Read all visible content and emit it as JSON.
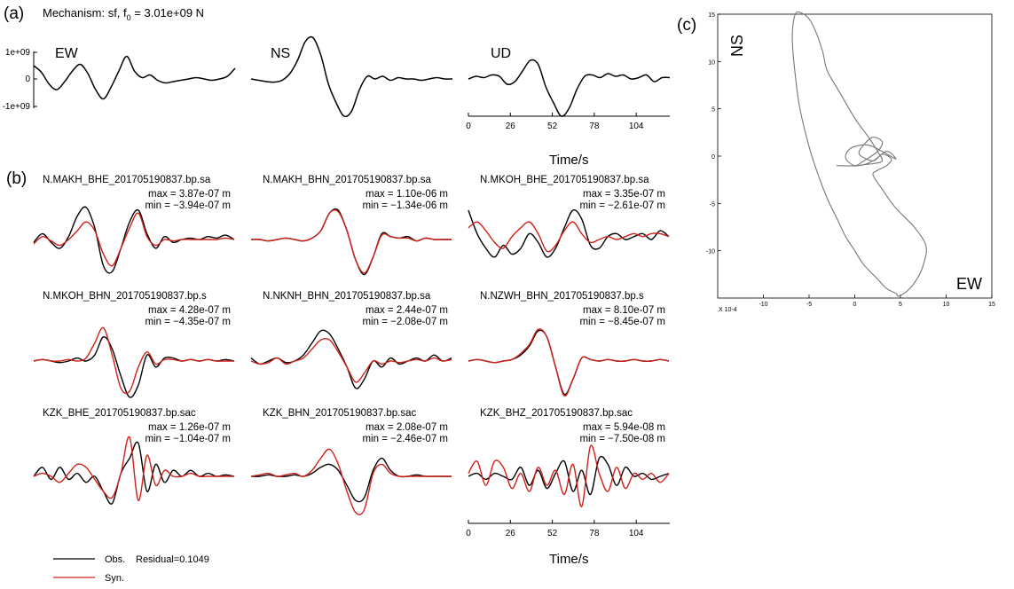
{
  "labels": {
    "panel_a": "(a)",
    "panel_b": "(b)",
    "panel_c": "(c)",
    "mechanism_prefix": "Mechanism: sf, f",
    "mechanism_sub": "0",
    "mechanism_suffix": " = 3.01e+09 N",
    "time_label": "Time/s"
  },
  "colors": {
    "observed": "#000000",
    "synthetic": "#d0201a",
    "particle_path": "#777777"
  },
  "chart_data": [
    {
      "id": "a",
      "type": "line",
      "title": "Mechanism: sf, f0 = 3.01e+09 N",
      "yticks": [
        "1e+09",
        "0",
        "-1e+09"
      ],
      "xticks": [
        "0",
        "26",
        "52",
        "78",
        "104"
      ],
      "xlabel": "Time/s",
      "series": [
        {
          "name": "EW",
          "values": [
            0.5,
            0.25,
            -0.2,
            -0.4,
            -0.1,
            0.3,
            0.55,
            0.2,
            -0.4,
            -0.75,
            -0.3,
            0.3,
            0.85,
            0.3,
            0.05,
            0.15,
            -0.05,
            -0.15,
            -0.1,
            -0.05,
            0.0,
            0.05,
            0.0,
            -0.05,
            0.0,
            0.1,
            0.4
          ]
        },
        {
          "name": "NS",
          "values": [
            0.0,
            -0.05,
            -0.1,
            -0.12,
            -0.05,
            0.2,
            0.7,
            1.4,
            1.55,
            0.9,
            -0.2,
            -0.9,
            -1.4,
            -1.2,
            -0.4,
            0.1,
            0.0,
            0.1,
            -0.05,
            0.05,
            0.0,
            0.0,
            -0.05,
            0.0,
            0.05,
            0.0,
            0.0
          ]
        },
        {
          "name": "UD",
          "values": [
            0.0,
            0.1,
            0.05,
            0.15,
            0.1,
            -0.2,
            -0.1,
            0.3,
            0.7,
            0.55,
            -0.3,
            -0.9,
            -1.4,
            -1.1,
            -0.4,
            0.1,
            0.15,
            0.05,
            0.2,
            0.1,
            0.15,
            0.0,
            0.05,
            0.15,
            -0.1,
            0.05,
            0.05
          ]
        }
      ]
    },
    {
      "id": "b",
      "type": "line",
      "xticks": [
        "0",
        "26",
        "52",
        "78",
        "104"
      ],
      "xlabel": "Time/s",
      "legend": [
        {
          "name": "Obs.",
          "note": "Residual=0.1049"
        },
        {
          "name": "Syn."
        }
      ],
      "traces": [
        {
          "title": "N.MAKH_BHE_201705190837.bp.sa",
          "max": "max = 3.87e-07 m",
          "min": "min = −3.94e-07 m",
          "obs": [
            -0.1,
            0.2,
            -0.1,
            -0.3,
            0.1,
            0.8,
            1.1,
            0.4,
            -0.9,
            -1.1,
            -0.3,
            0.6,
            1.0,
            0.2,
            -0.3,
            0.1,
            -0.1,
            0.0,
            0.05,
            0.0,
            0.1,
            0.05,
            0.15,
            0.0
          ],
          "syn": [
            -0.15,
            0.1,
            -0.05,
            -0.2,
            0.0,
            0.3,
            0.6,
            0.3,
            -0.5,
            -0.9,
            -0.3,
            0.4,
            0.9,
            0.1,
            -0.2,
            0.0,
            -0.05,
            0.0,
            0.0,
            0.0,
            0.0,
            0.0,
            0.05,
            0.0
          ]
        },
        {
          "title": "N.MAKH_BHN_201705190837.bp.sa",
          "max": "max = 1.10e-06 m",
          "min": "min = −1.34e-06 m",
          "obs": [
            0.0,
            0.0,
            -0.05,
            0.0,
            0.05,
            0.0,
            -0.05,
            0.05,
            0.3,
            0.9,
            1.0,
            0.3,
            -0.7,
            -1.2,
            -0.6,
            0.2,
            0.1,
            0.05,
            0.1,
            -0.05,
            0.05,
            0.0,
            0.0,
            0.0
          ],
          "syn": [
            0.0,
            0.0,
            -0.05,
            0.0,
            0.05,
            0.0,
            -0.05,
            0.05,
            0.3,
            0.9,
            0.95,
            0.3,
            -0.7,
            -1.15,
            -0.6,
            0.15,
            0.1,
            0.05,
            0.05,
            -0.05,
            0.05,
            0.0,
            0.0,
            0.0
          ]
        },
        {
          "title": "N.MKOH_BHE_201705190837.bp.sa",
          "max": "max = 3.35e-07 m",
          "min": "min = −2.61e-07 m",
          "obs": [
            1.0,
            0.2,
            -0.3,
            -0.6,
            -0.2,
            -0.5,
            -0.3,
            0.2,
            -0.1,
            -0.6,
            -0.3,
            0.4,
            1.0,
            0.7,
            -0.2,
            -0.3,
            0.1,
            0.2,
            0.0,
            0.1,
            0.2,
            0.0,
            0.3,
            0.1
          ],
          "syn": [
            0.4,
            0.6,
            0.3,
            -0.1,
            -0.3,
            0.1,
            0.4,
            0.6,
            0.2,
            -0.4,
            -0.2,
            0.3,
            0.6,
            0.2,
            -0.1,
            0.0,
            0.1,
            0.0,
            0.1,
            0.2,
            0.1,
            0.2,
            0.2,
            0.1
          ]
        },
        {
          "title": "N.MKOH_BHN_201705190837.bp.s",
          "max": "max = 4.28e-07 m",
          "min": "min = −4.35e-07 m",
          "obs": [
            0.0,
            0.05,
            0.0,
            -0.05,
            0.0,
            0.1,
            0.0,
            0.2,
            0.8,
            0.4,
            -0.5,
            -1.2,
            -0.8,
            0.2,
            -0.2,
            0.1,
            0.1,
            0.0,
            0.05,
            0.0,
            0.05,
            0.0,
            0.05,
            0.0
          ],
          "syn": [
            0.0,
            0.05,
            0.0,
            0.0,
            0.05,
            0.0,
            0.1,
            0.6,
            1.1,
            0.2,
            -0.9,
            -1.0,
            -0.2,
            0.3,
            -0.1,
            0.05,
            0.05,
            0.0,
            0.05,
            0.0,
            0.05,
            0.0,
            0.0,
            0.0
          ]
        },
        {
          "title": "N.NKNH_BHN_201705190837.bp.sa",
          "max": "max = 2.44e-07 m",
          "min": "min = −2.08e-07 m",
          "obs": [
            0.1,
            -0.1,
            0.0,
            0.1,
            -0.05,
            0.0,
            0.2,
            0.6,
            1.0,
            0.9,
            0.4,
            -0.2,
            -0.9,
            -0.6,
            0.0,
            -0.2,
            0.1,
            -0.1,
            0.0,
            0.1,
            0.0,
            0.2,
            0.0,
            0.1
          ],
          "syn": [
            0.0,
            -0.1,
            -0.05,
            0.1,
            -0.1,
            0.0,
            0.1,
            0.4,
            0.7,
            0.7,
            0.3,
            -0.2,
            -0.7,
            -0.4,
            0.0,
            -0.1,
            0.0,
            -0.05,
            0.0,
            0.05,
            0.0,
            0.1,
            0.0,
            0.05
          ]
        },
        {
          "title": "N.NZWH_BHN_201705190837.bp.s",
          "max": "max = 8.10e-07 m",
          "min": "min = −8.45e-07 m",
          "obs": [
            0.0,
            0.05,
            0.0,
            -0.05,
            0.0,
            0.05,
            0.2,
            0.5,
            1.0,
            0.8,
            -0.2,
            -1.1,
            -0.6,
            0.1,
            0.05,
            0.0,
            0.05,
            0.0,
            0.0,
            0.05,
            0.0,
            0.0,
            0.05,
            0.0
          ],
          "syn": [
            0.0,
            0.05,
            0.0,
            -0.05,
            0.0,
            0.05,
            0.25,
            0.55,
            1.05,
            0.8,
            -0.2,
            -1.15,
            -0.6,
            0.1,
            0.05,
            0.0,
            0.05,
            0.0,
            0.0,
            0.05,
            0.0,
            0.0,
            0.05,
            0.0
          ]
        },
        {
          "title": "KZK_BHE_201705190837.bp.sac",
          "max": "max = 1.26e-07 m",
          "min": "min = −1.04e-07 m",
          "obs": [
            0.0,
            0.3,
            -0.1,
            0.3,
            -0.1,
            0.1,
            -0.2,
            0.0,
            -0.5,
            -0.9,
            0.1,
            0.6,
            1.1,
            -0.5,
            0.4,
            -0.2,
            0.2,
            0.0,
            0.2,
            0.0,
            0.1,
            0.0,
            0.05,
            0.0
          ],
          "syn": [
            0.0,
            0.1,
            0.0,
            -0.2,
            0.1,
            0.4,
            0.3,
            -0.1,
            -0.5,
            -0.7,
            0.1,
            1.3,
            -0.8,
            0.7,
            -0.3,
            0.2,
            0.0,
            0.0,
            0.1,
            0.0,
            0.0,
            0.0,
            0.0,
            0.0
          ]
        },
        {
          "title": "KZK_BHN_201705190837.bp.sac",
          "max": "max = 2.08e-07 m",
          "min": "min = −2.46e-07 m",
          "obs": [
            0.0,
            0.0,
            0.05,
            0.0,
            0.0,
            0.05,
            0.0,
            0.1,
            0.3,
            0.4,
            0.2,
            -0.3,
            -0.8,
            -0.7,
            0.2,
            0.6,
            0.2,
            0.0,
            0.0,
            0.05,
            0.0,
            0.0,
            0.0,
            0.0
          ],
          "syn": [
            0.0,
            0.05,
            0.1,
            0.0,
            0.05,
            0.1,
            0.0,
            0.2,
            0.6,
            0.9,
            0.4,
            -0.5,
            -1.2,
            -1.1,
            0.1,
            0.4,
            0.1,
            0.0,
            0.0,
            0.0,
            0.0,
            0.0,
            0.0,
            0.0
          ]
        },
        {
          "title": "KZK_BHZ_201705190837.bp.sac",
          "max": "max = 5.94e-08 m",
          "min": "min = −7.50e-08 m",
          "obs": [
            0.0,
            0.1,
            -0.1,
            0.1,
            0.0,
            -0.1,
            0.3,
            -0.3,
            0.2,
            -0.4,
            0.1,
            0.5,
            -0.5,
            0.2,
            -0.6,
            0.6,
            0.4,
            -0.3,
            0.3,
            0.0,
            0.1,
            -0.1,
            0.0,
            0.1
          ],
          "syn": [
            0.1,
            0.5,
            -0.3,
            0.5,
            0.3,
            -0.4,
            0.1,
            -0.5,
            0.3,
            -0.3,
            0.2,
            -0.6,
            0.4,
            -1.0,
            1.0,
            0.1,
            -0.5,
            0.3,
            -0.4,
            0.1,
            -0.1,
            0.1,
            -0.2,
            0.1
          ]
        }
      ]
    },
    {
      "id": "c",
      "type": "line",
      "xlabel": "EW",
      "ylabel": "NS",
      "xlim": [
        -15,
        15
      ],
      "ylim": [
        -15,
        15
      ],
      "xticks": [
        "-10",
        "-5",
        "0",
        "5",
        "10",
        "15"
      ],
      "yticks": [
        "15",
        "10",
        "5",
        "0",
        "-5",
        "-10"
      ],
      "multiplier": "X 10-4",
      "x": [
        -2.0,
        0.5,
        2.0,
        3.5,
        4.5,
        3.0,
        2.0,
        1.0,
        -0.5,
        -1.0,
        0.0,
        1.0,
        2.5,
        3.0,
        2.0,
        1.0,
        0.5,
        2.0,
        3.0,
        4.0,
        3.5,
        2.5,
        2.0,
        3.0,
        4.5,
        6.5,
        7.8,
        7.5,
        6.8,
        5.8,
        4.8,
        4.5,
        3.5,
        2.5,
        1.0,
        0.0,
        -1.0,
        -2.0,
        -3.0,
        -4.0,
        -5.0,
        -6.0,
        -6.5,
        -6.8,
        -6.8,
        -6.5,
        -6.0,
        -5.0,
        -4.2,
        -3.5,
        -3.0,
        -1.5,
        0.0,
        1.5,
        2.5,
        3.0,
        2.0,
        1.0,
        0.5
      ],
      "y": [
        -1.0,
        -1.0,
        -0.5,
        0.5,
        -0.3,
        0.5,
        1.0,
        1.2,
        0.8,
        -0.2,
        -1.0,
        -0.5,
        0.5,
        1.5,
        2.0,
        1.2,
        0.2,
        -0.5,
        0.2,
        -0.3,
        -1.0,
        -1.5,
        -2.0,
        -3.5,
        -5.5,
        -7.5,
        -9.5,
        -11.5,
        -13.0,
        -14.2,
        -14.8,
        -14.5,
        -14.0,
        -13.0,
        -11.5,
        -10.0,
        -8.5,
        -6.5,
        -4.5,
        -2.0,
        1.0,
        5.0,
        8.5,
        11.5,
        13.5,
        15.0,
        15.2,
        14.5,
        13.0,
        11.0,
        9.0,
        6.5,
        4.0,
        2.0,
        0.5,
        -0.5,
        -0.8,
        -0.9,
        -1.0
      ]
    }
  ]
}
